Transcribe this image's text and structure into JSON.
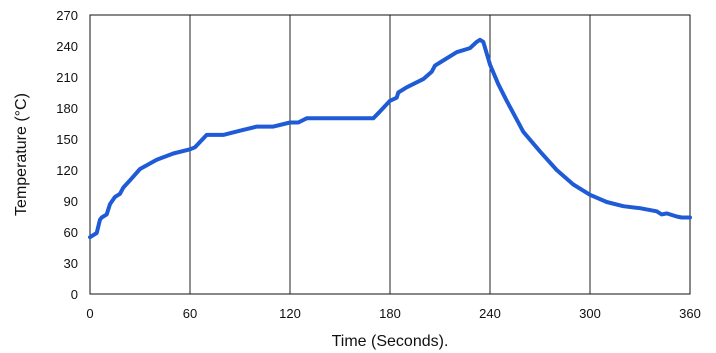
{
  "chart_data": {
    "type": "line",
    "xlabel": "Time (Seconds).",
    "ylabel": "Temperature (°C)",
    "xlim": [
      0,
      360
    ],
    "ylim": [
      0,
      270
    ],
    "x_ticks": [
      0,
      60,
      120,
      180,
      240,
      300,
      360
    ],
    "y_ticks": [
      0,
      30,
      60,
      90,
      120,
      150,
      180,
      210,
      240,
      270
    ],
    "grid": {
      "vertical": true,
      "horizontal": false
    },
    "colors": {
      "line": "#1f5bd6",
      "grid": "#222222",
      "axis": "#111111"
    },
    "series": [
      {
        "x": [
          0,
          4,
          6,
          7,
          10,
          12,
          15,
          18,
          20,
          24,
          30,
          40,
          50,
          60,
          63,
          70,
          80,
          90,
          100,
          110,
          120,
          125,
          130,
          140,
          150,
          160,
          170,
          173,
          180,
          184,
          185,
          190,
          200,
          205,
          207,
          210,
          220,
          228,
          232,
          234,
          236,
          240,
          245,
          250,
          255,
          260,
          270,
          280,
          290,
          300,
          310,
          320,
          330,
          340,
          343,
          346,
          352,
          355,
          360
        ],
        "y": [
          55,
          59,
          72,
          74,
          77,
          87,
          94,
          97,
          103,
          110,
          121,
          130,
          136,
          140,
          142,
          154,
          154,
          158,
          162,
          162,
          166,
          166,
          170,
          170,
          170,
          170,
          170,
          175,
          187,
          190,
          195,
          200,
          208,
          215,
          221,
          224,
          234,
          238,
          244,
          246,
          244,
          222,
          203,
          187,
          172,
          157,
          138,
          120,
          106,
          96,
          89,
          85,
          83,
          80,
          77,
          78,
          75,
          74,
          74
        ]
      }
    ]
  }
}
